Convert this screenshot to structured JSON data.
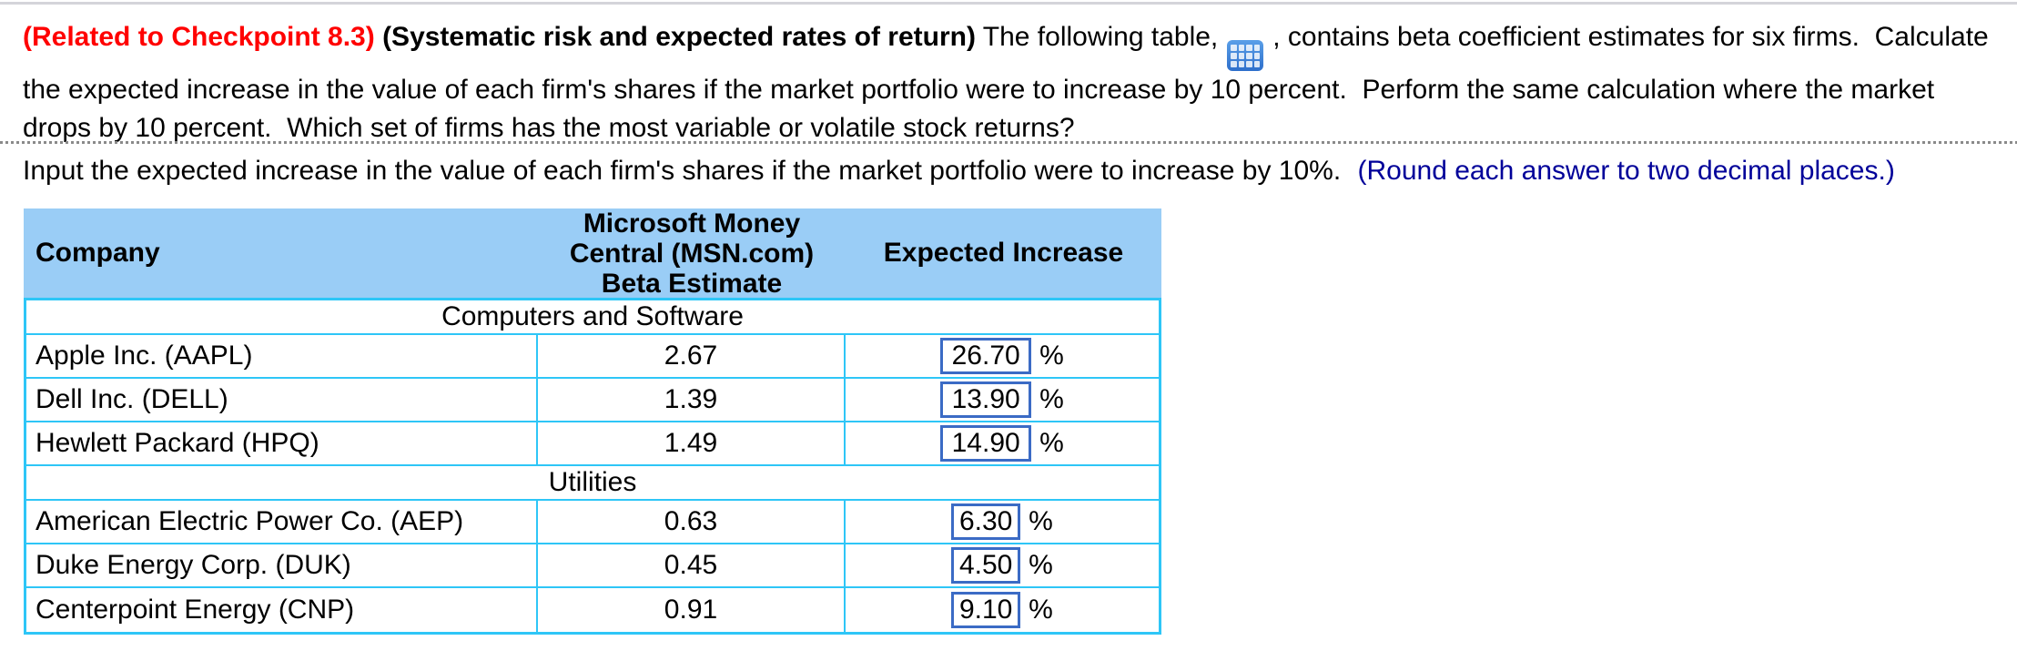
{
  "colors": {
    "checkpoint_red": "#FF0000",
    "hint_blue": "#000099",
    "table_header_bg": "#9ACDF6",
    "table_border_cyan": "#2EC6F7",
    "input_border_blue": "#3B6BC5",
    "icon_blue": "#3A7AD0"
  },
  "problem": {
    "checkpoint_label": "(Related to Checkpoint 8.3)",
    "topic_label": "(Systematic risk and expected rates of return)",
    "text_before_icon": "The following table,",
    "icon": "table-icon",
    "text_after_icon": ", contains beta coefficient estimates for six firms.  Calculate the expected increase in the value of each firm's shares if the market portfolio were to increase by 10 percent.  Perform the same calculation where the market drops by 10 percent.  Which set of firms has the most variable or volatile stock returns?"
  },
  "instruction": {
    "text": "Input the expected increase in the value of each firm's shares if the market portfolio were to increase by 10%.",
    "hint": "(Round each answer to two decimal places.)"
  },
  "table": {
    "columns": {
      "company": "Company",
      "beta_lines": [
        "Microsoft Money",
        "Central (MSN.com)",
        "Beta Estimate"
      ],
      "expected": "Expected Increase"
    },
    "sections": [
      {
        "label": "Computers and Software",
        "rows": [
          {
            "company": "Apple Inc. (AAPL)",
            "beta": "2.67",
            "expected_value": "26.70",
            "unit": "%"
          },
          {
            "company": "Dell Inc. (DELL)",
            "beta": "1.39",
            "expected_value": "13.90",
            "unit": "%"
          },
          {
            "company": "Hewlett Packard (HPQ)",
            "beta": "1.49",
            "expected_value": "14.90",
            "unit": "%"
          }
        ]
      },
      {
        "label": "Utilities",
        "rows": [
          {
            "company": "American Electric Power Co. (AEP)",
            "beta": "0.63",
            "expected_value": "6.30",
            "unit": "%"
          },
          {
            "company": "Duke Energy Corp. (DUK)",
            "beta": "0.45",
            "expected_value": "4.50",
            "unit": "%"
          },
          {
            "company": "Centerpoint Energy (CNP)",
            "beta": "0.91",
            "expected_value": "9.10",
            "unit": "%"
          }
        ]
      }
    ]
  }
}
